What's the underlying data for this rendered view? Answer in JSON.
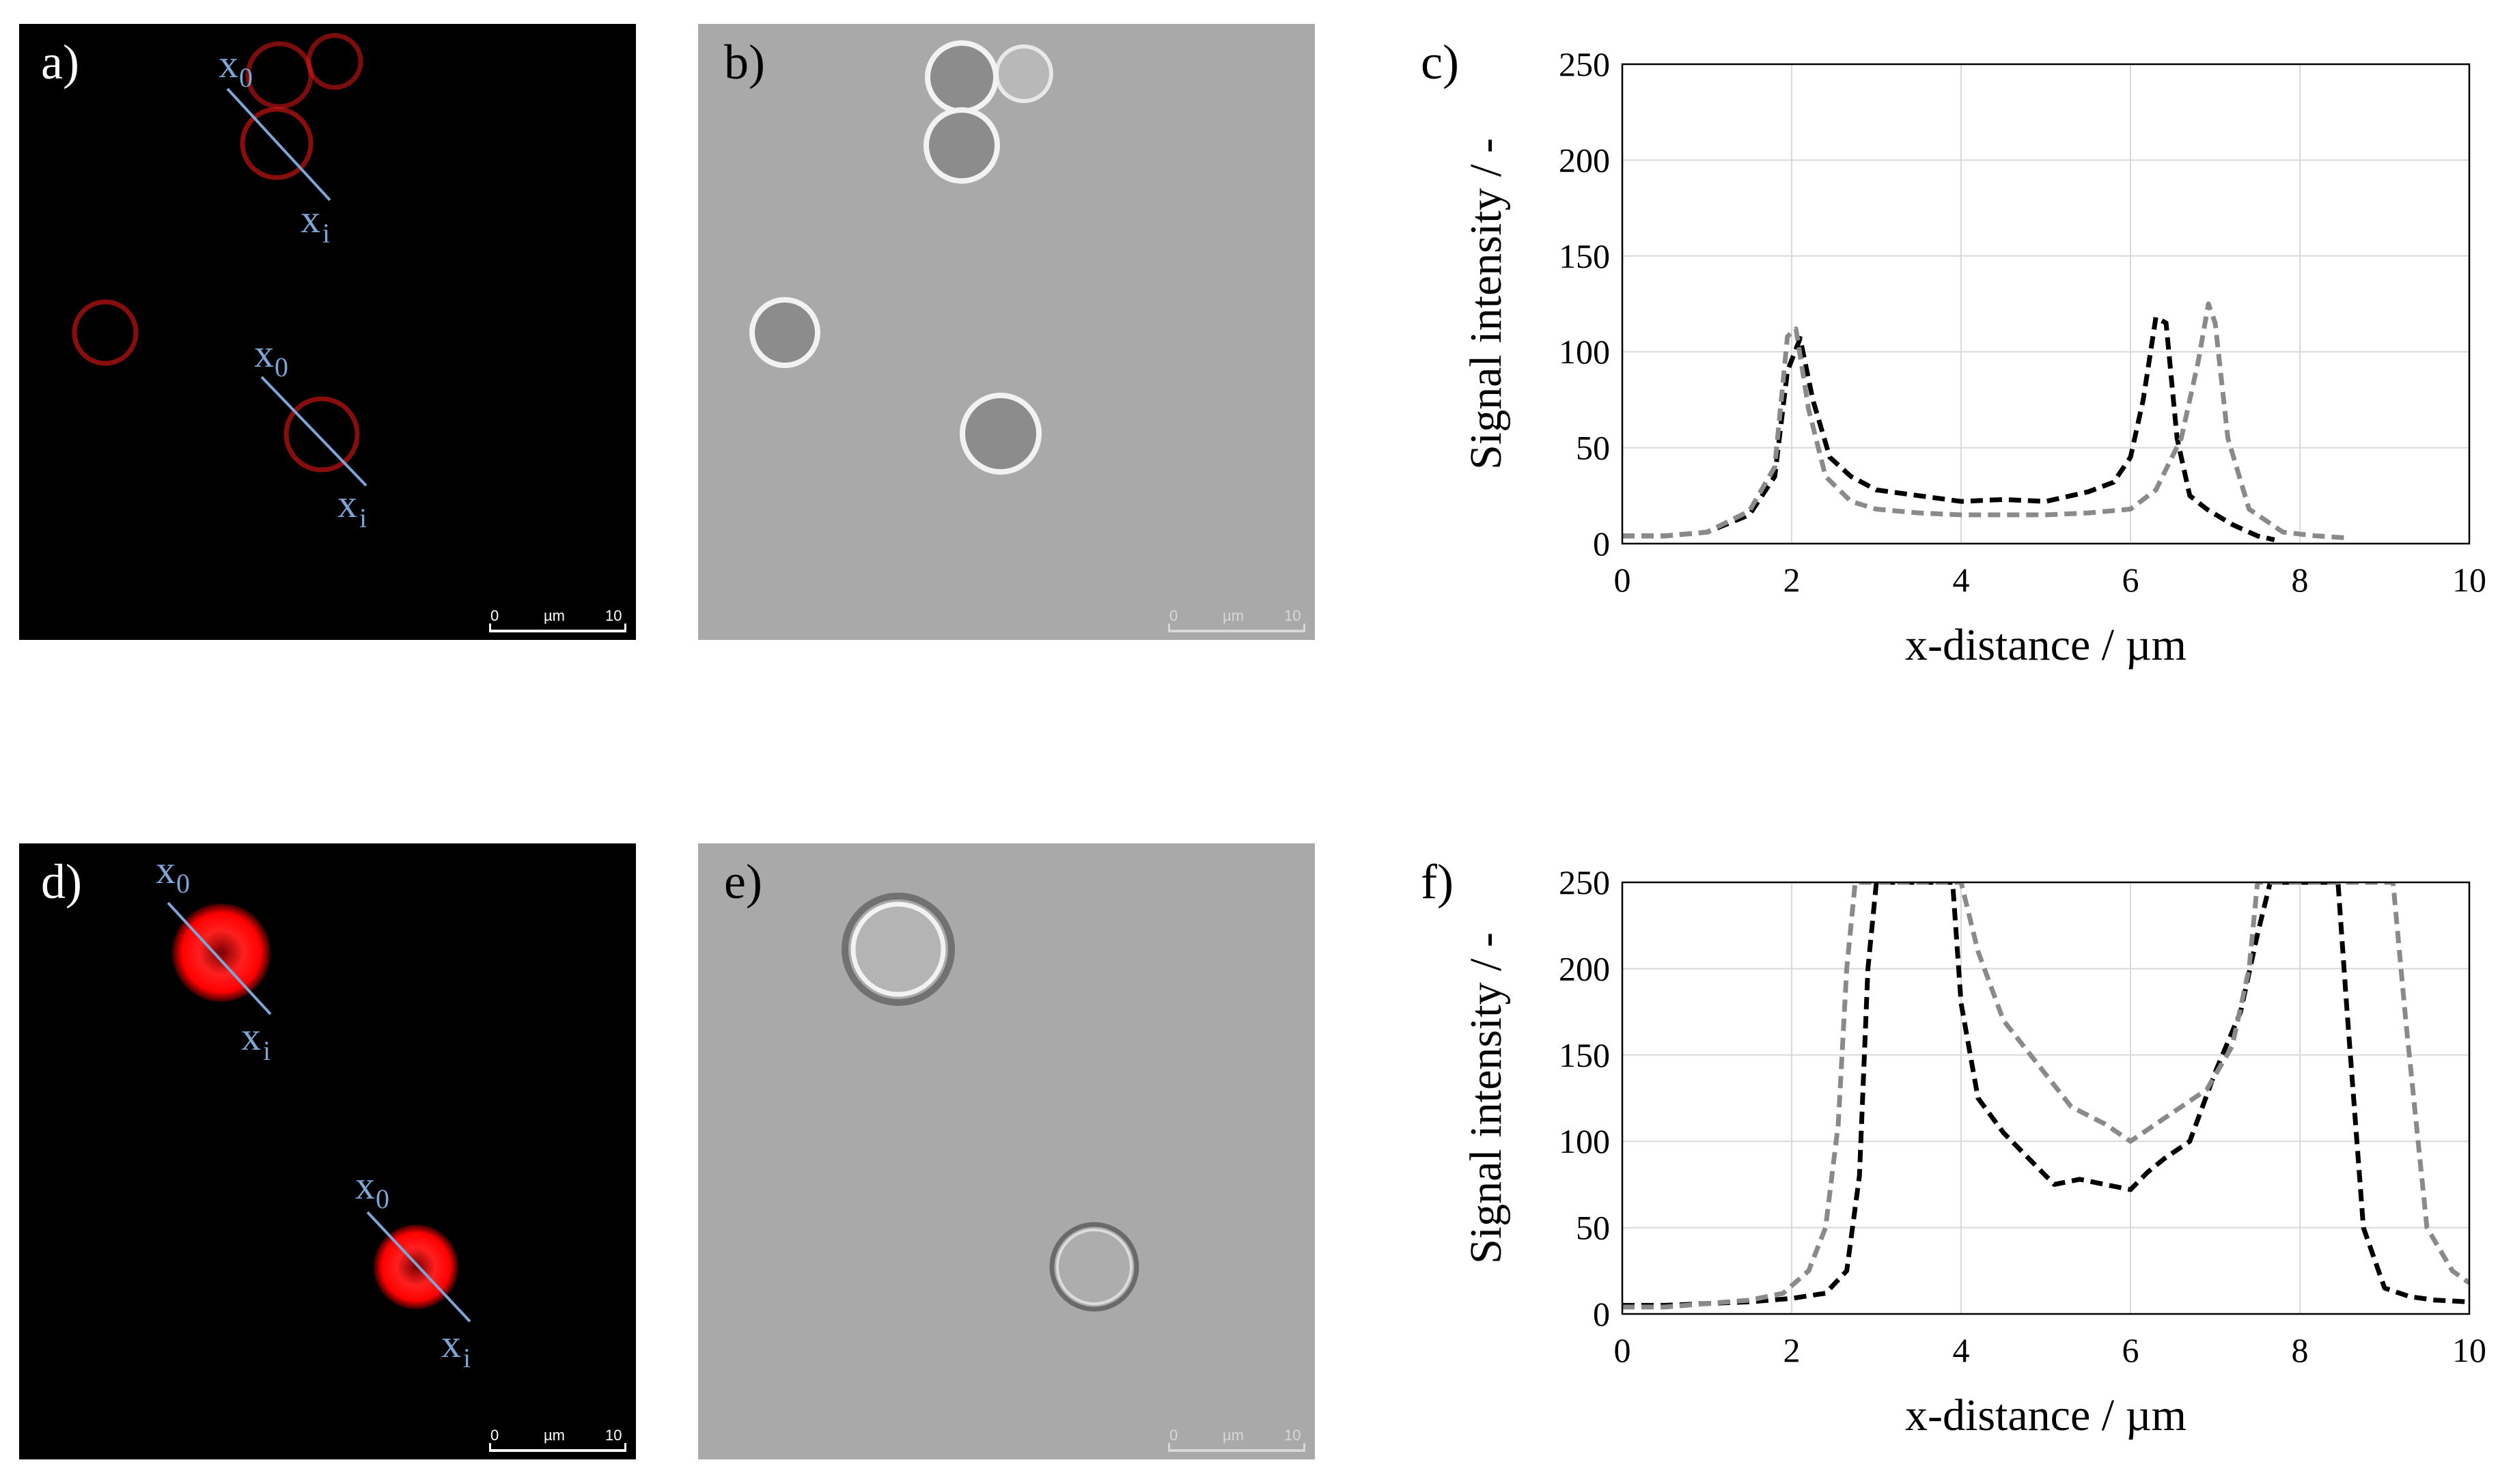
{
  "panels": {
    "a": {
      "letter": "a)"
    },
    "b": {
      "letter": "b)"
    },
    "c": {
      "letter": "c)"
    },
    "d": {
      "letter": "d)"
    },
    "e": {
      "letter": "e)"
    },
    "f": {
      "letter": "f)"
    }
  },
  "line_labels": {
    "start": "x",
    "start_sub": "0",
    "end": "x",
    "end_sub": "i"
  },
  "scalebar": {
    "zero": "0",
    "unit": "µm",
    "ten": "10"
  },
  "colors": {
    "fluorescence": "#e21818",
    "profile_line": "#7da6d6",
    "micro_background": "#a9a9a9",
    "series_black": "#000000",
    "series_gray": "#8a8a8a",
    "grid": "#d9d9d9"
  },
  "chart_data": [
    {
      "type": "line",
      "panel": "c",
      "xlabel": "x-distance / µm",
      "ylabel": "Signal intensity / -",
      "xlim": [
        0,
        10
      ],
      "ylim": [
        0,
        250
      ],
      "xticks": [
        0,
        2,
        4,
        6,
        8,
        10
      ],
      "yticks": [
        0,
        50,
        100,
        150,
        200,
        250
      ],
      "grid": true,
      "legend": "none",
      "series": [
        {
          "line_style": "dashed",
          "color": "#000000",
          "x": [
            0,
            0.5,
            1.0,
            1.5,
            1.8,
            1.95,
            2.1,
            2.25,
            2.45,
            2.7,
            3.0,
            3.5,
            4.0,
            4.5,
            5.0,
            5.5,
            5.8,
            6.0,
            6.15,
            6.3,
            6.42,
            6.55,
            6.7,
            6.9,
            7.2,
            7.5,
            7.7
          ],
          "y": [
            4,
            4,
            6,
            15,
            35,
            90,
            107,
            75,
            45,
            35,
            28,
            25,
            22,
            23,
            22,
            27,
            32,
            45,
            75,
            118,
            115,
            55,
            25,
            18,
            10,
            4,
            2
          ]
        },
        {
          "line_style": "dashed",
          "color": "#8a8a8a",
          "x": [
            0,
            0.5,
            1.0,
            1.5,
            1.8,
            1.95,
            2.05,
            2.2,
            2.4,
            2.7,
            3.0,
            3.5,
            4.0,
            4.5,
            5.0,
            5.5,
            6.0,
            6.3,
            6.6,
            6.8,
            6.92,
            7.0,
            7.15,
            7.4,
            7.8,
            8.2,
            8.55
          ],
          "y": [
            4,
            4,
            6,
            17,
            40,
            108,
            112,
            70,
            35,
            22,
            18,
            16,
            15,
            15,
            15,
            16,
            18,
            28,
            55,
            95,
            125,
            115,
            55,
            18,
            6,
            4,
            3
          ]
        }
      ]
    },
    {
      "type": "line",
      "panel": "f",
      "xlabel": "x-distance / µm",
      "ylabel": "Signal intensity / -",
      "xlim": [
        0,
        10
      ],
      "ylim": [
        0,
        250
      ],
      "xticks": [
        0,
        2,
        4,
        6,
        8,
        10
      ],
      "yticks": [
        0,
        50,
        100,
        150,
        200,
        250
      ],
      "grid": true,
      "legend": "none",
      "series": [
        {
          "line_style": "dashed",
          "color": "#000000",
          "x": [
            0,
            0.5,
            1.0,
            1.5,
            2.0,
            2.4,
            2.65,
            2.8,
            2.9,
            3.0,
            3.9,
            4.0,
            4.2,
            4.5,
            4.8,
            5.1,
            5.4,
            5.7,
            6.0,
            6.2,
            6.4,
            6.7,
            7.0,
            7.3,
            7.5,
            7.65,
            8.45,
            8.55,
            8.75,
            9.0,
            9.3,
            9.6,
            10.0
          ],
          "y": [
            5,
            5,
            6,
            7,
            9,
            12,
            25,
            80,
            200,
            250,
            250,
            180,
            125,
            105,
            90,
            75,
            78,
            75,
            72,
            82,
            90,
            100,
            140,
            175,
            220,
            250,
            250,
            180,
            50,
            15,
            10,
            8,
            7
          ]
        },
        {
          "line_style": "dashed",
          "color": "#8a8a8a",
          "x": [
            0,
            0.5,
            1.0,
            1.5,
            1.9,
            2.2,
            2.4,
            2.55,
            2.65,
            2.75,
            4.0,
            4.2,
            4.5,
            4.9,
            5.3,
            5.7,
            6.0,
            6.3,
            6.6,
            6.9,
            7.2,
            7.4,
            7.5,
            9.1,
            9.25,
            9.5,
            9.8,
            10.0
          ],
          "y": [
            4,
            4,
            6,
            8,
            12,
            25,
            50,
            110,
            200,
            250,
            250,
            210,
            170,
            145,
            120,
            110,
            100,
            110,
            120,
            130,
            155,
            200,
            250,
            250,
            170,
            50,
            25,
            18
          ]
        }
      ]
    }
  ]
}
